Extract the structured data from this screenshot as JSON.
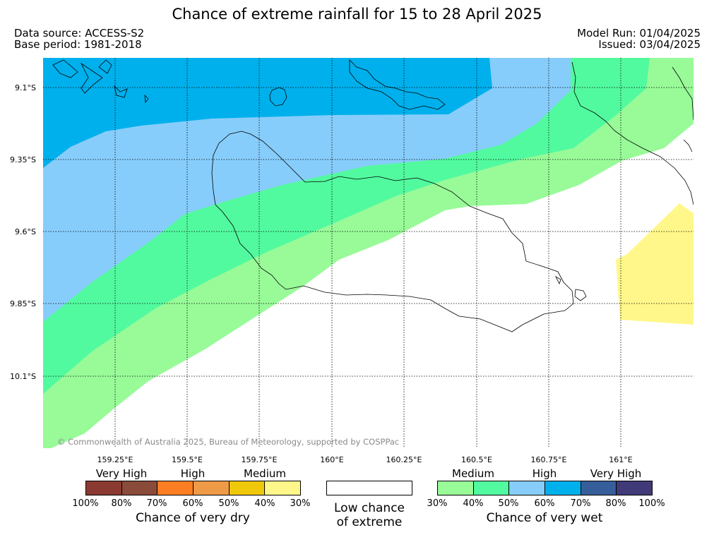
{
  "title": "Chance of extreme rainfall for 15 to 28 April 2025",
  "source": {
    "data_source": "Data source: ACCESS-S2",
    "base_period": "Base period: 1981-2018",
    "model_run": "Model Run: 01/04/2025",
    "issued": "Issued: 03/04/2025"
  },
  "copyright": "© Commonwealth of Australia 2025, Bureau of Meteorology, supported by COSPPac",
  "lat_labels": [
    "9.1°S",
    "9.35°S",
    "9.6°S",
    "9.85°S",
    "10.1°S"
  ],
  "lon_labels": [
    "159.25°E",
    "159.5°E",
    "159.75°E",
    "160°E",
    "160.25°E",
    "160.5°E",
    "160.75°E",
    "161°E"
  ],
  "colors": {
    "wet_30_40": "#98fb98",
    "wet_40_50": "#52fa9f",
    "wet_50_60": "#87cdfb",
    "wet_60_70": "#00b0ec",
    "wet_70_80": "#365e9b",
    "wet_80_100": "#403a78",
    "dry_30_40": "#fff78a",
    "dry_40_50": "#f0c80a",
    "dry_50_60": "#ee9a46",
    "dry_60_70": "#fd7e22",
    "dry_70_80": "#8b4b3a",
    "dry_80_100": "#8b3a32",
    "low": "#ffffff"
  },
  "legend": {
    "dry": {
      "levels": [
        "Very High",
        "High",
        "Medium"
      ],
      "ticks": [
        "100%",
        "80%",
        "70%",
        "60%",
        "50%",
        "40%",
        "30%"
      ],
      "caption": "Chance of very dry"
    },
    "low": {
      "line1": "Low chance",
      "line2": "of extreme"
    },
    "wet": {
      "levels": [
        "Medium",
        "High",
        "Very High"
      ],
      "ticks": [
        "30%",
        "40%",
        "50%",
        "60%",
        "70%",
        "80%",
        "100%"
      ],
      "caption": "Chance of very wet"
    }
  }
}
